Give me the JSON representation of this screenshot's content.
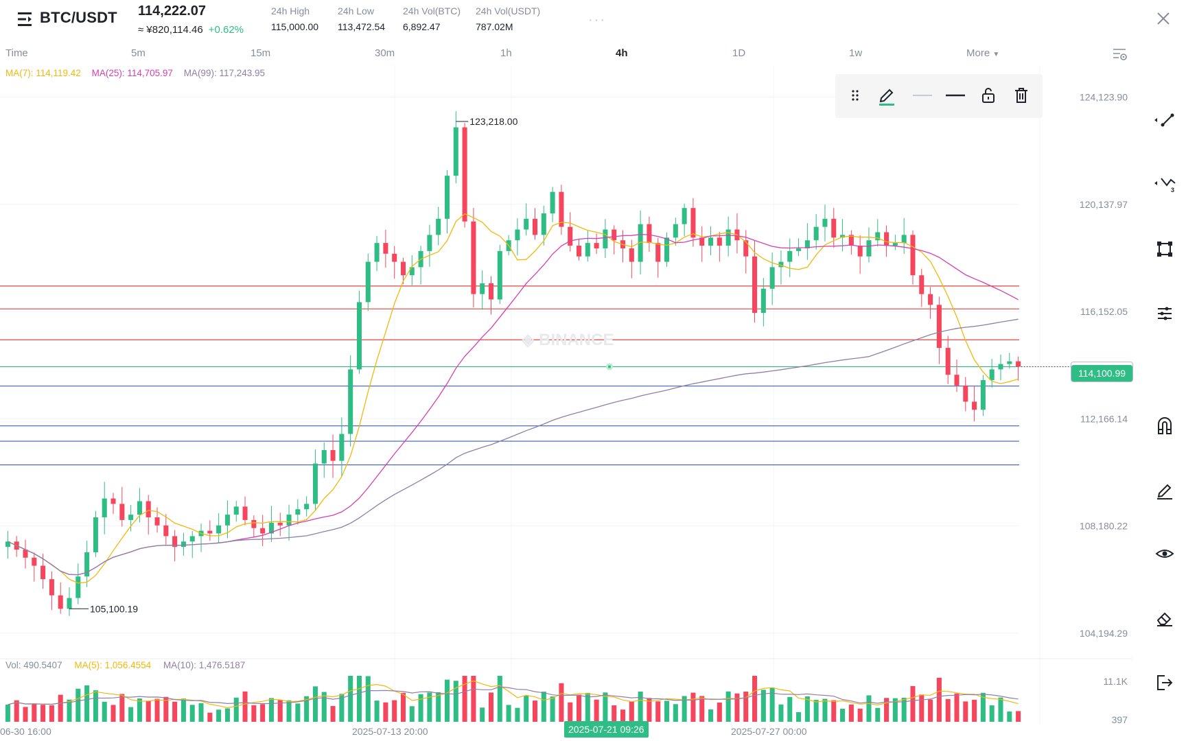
{
  "header": {
    "pair": "BTC/USDT",
    "last_price": "114,222.07",
    "cny_price": "≈ ¥820,114.46",
    "change": "+0.62%",
    "stats": [
      {
        "label": "24h High",
        "value": "115,000.00"
      },
      {
        "label": "24h Low",
        "value": "113,472.54"
      },
      {
        "label": "24h Vol(BTC)",
        "value": "6,892.47"
      },
      {
        "label": "24h Vol(USDT)",
        "value": "787.02M"
      }
    ]
  },
  "timeframes": {
    "time": "Time",
    "m5": "5m",
    "m15": "15m",
    "m30": "30m",
    "h1": "1h",
    "h4": "4h",
    "d1": "1D",
    "w1": "1w",
    "more": "More",
    "active": "4h"
  },
  "ma_legend": {
    "ma7": "MA(7): 114,119.42",
    "ma25": "MA(25): 114,705.97",
    "ma99": "MA(99): 117,243.95"
  },
  "colors": {
    "up": "#2ebd85",
    "down": "#f6465d",
    "ma7": "#f0b90b",
    "ma25": "#d63fb0",
    "ma99": "#8f7fa8",
    "red_line": "#e0453f",
    "blue_line": "#3b5fb8"
  },
  "drawing_toolbar": {
    "icons": [
      "drag-handle-icon",
      "pencil-icon",
      "line-style-thin-icon",
      "line-style-thick-icon",
      "unlock-icon",
      "trash-icon"
    ]
  },
  "right_tools": [
    "trendline-icon",
    "fib-icon",
    "shape-icon",
    "indicator-icon",
    "magnet-icon",
    "pen-icon",
    "eye-icon",
    "eraser-icon",
    "exit-icon"
  ],
  "chart_data": {
    "type": "candlestick",
    "symbol": "BTC/USDT",
    "interval": "4h",
    "y_axis_labels": [
      "124,123.90",
      "120,137.97",
      "116,152.05",
      "112,166.14",
      "108,180.22",
      "104,194.29"
    ],
    "ylim": [
      103500,
      124800
    ],
    "high_annotation": "123,218.00",
    "low_annotation": "105,100.19",
    "current_price": "114,100.99",
    "horizontal_lines": {
      "red": [
        117100,
        116250,
        115100
      ],
      "green": [
        114100
      ],
      "blue": [
        113380,
        111900,
        111330,
        110450
      ]
    },
    "ohlc_close_series": [
      107600,
      107300,
      107000,
      106700,
      106200,
      105600,
      105100,
      105500,
      106300,
      107200,
      108500,
      109200,
      109000,
      108400,
      108600,
      109100,
      108500,
      108200,
      107800,
      107400,
      107600,
      107800,
      108000,
      107900,
      108200,
      108600,
      108900,
      108400,
      108100,
      107900,
      108300,
      108200,
      108600,
      108800,
      109000,
      110500,
      111000,
      110600,
      111600,
      114000,
      116500,
      118000,
      118700,
      118300,
      118000,
      117500,
      117800,
      118400,
      119000,
      119600,
      121200,
      123000,
      119500,
      116800,
      117200,
      116600,
      118400,
      118800,
      119200,
      119600,
      119000,
      119800,
      120600,
      119300,
      118600,
      118200,
      118700,
      118500,
      119200,
      118800,
      118500,
      118000,
      119400,
      118700,
      118000,
      118900,
      119400,
      120000,
      118900,
      118600,
      118900,
      118600,
      119200,
      118800,
      118200,
      116100,
      117000,
      117800,
      118000,
      118400,
      118500,
      118800,
      119300,
      119600,
      118900,
      119000,
      118600,
      118200,
      118800,
      119100,
      118600,
      118700,
      119000,
      117500,
      116800,
      116400,
      114800,
      113800,
      113400,
      112800,
      112500,
      113600,
      114000,
      114200,
      114300,
      114100
    ],
    "volume": {
      "current": "Vol: 490.5407",
      "ma5": "MA(5): 1,056.4554",
      "ma10": "MA(10): 1,476.5187",
      "axis_labels": [
        "11.1K",
        "397"
      ]
    },
    "x_labels": [
      "06-30 16:00",
      "2025-07-13 20:00",
      "2025-07-21 09:26",
      "2025-07-27 00:00"
    ]
  }
}
